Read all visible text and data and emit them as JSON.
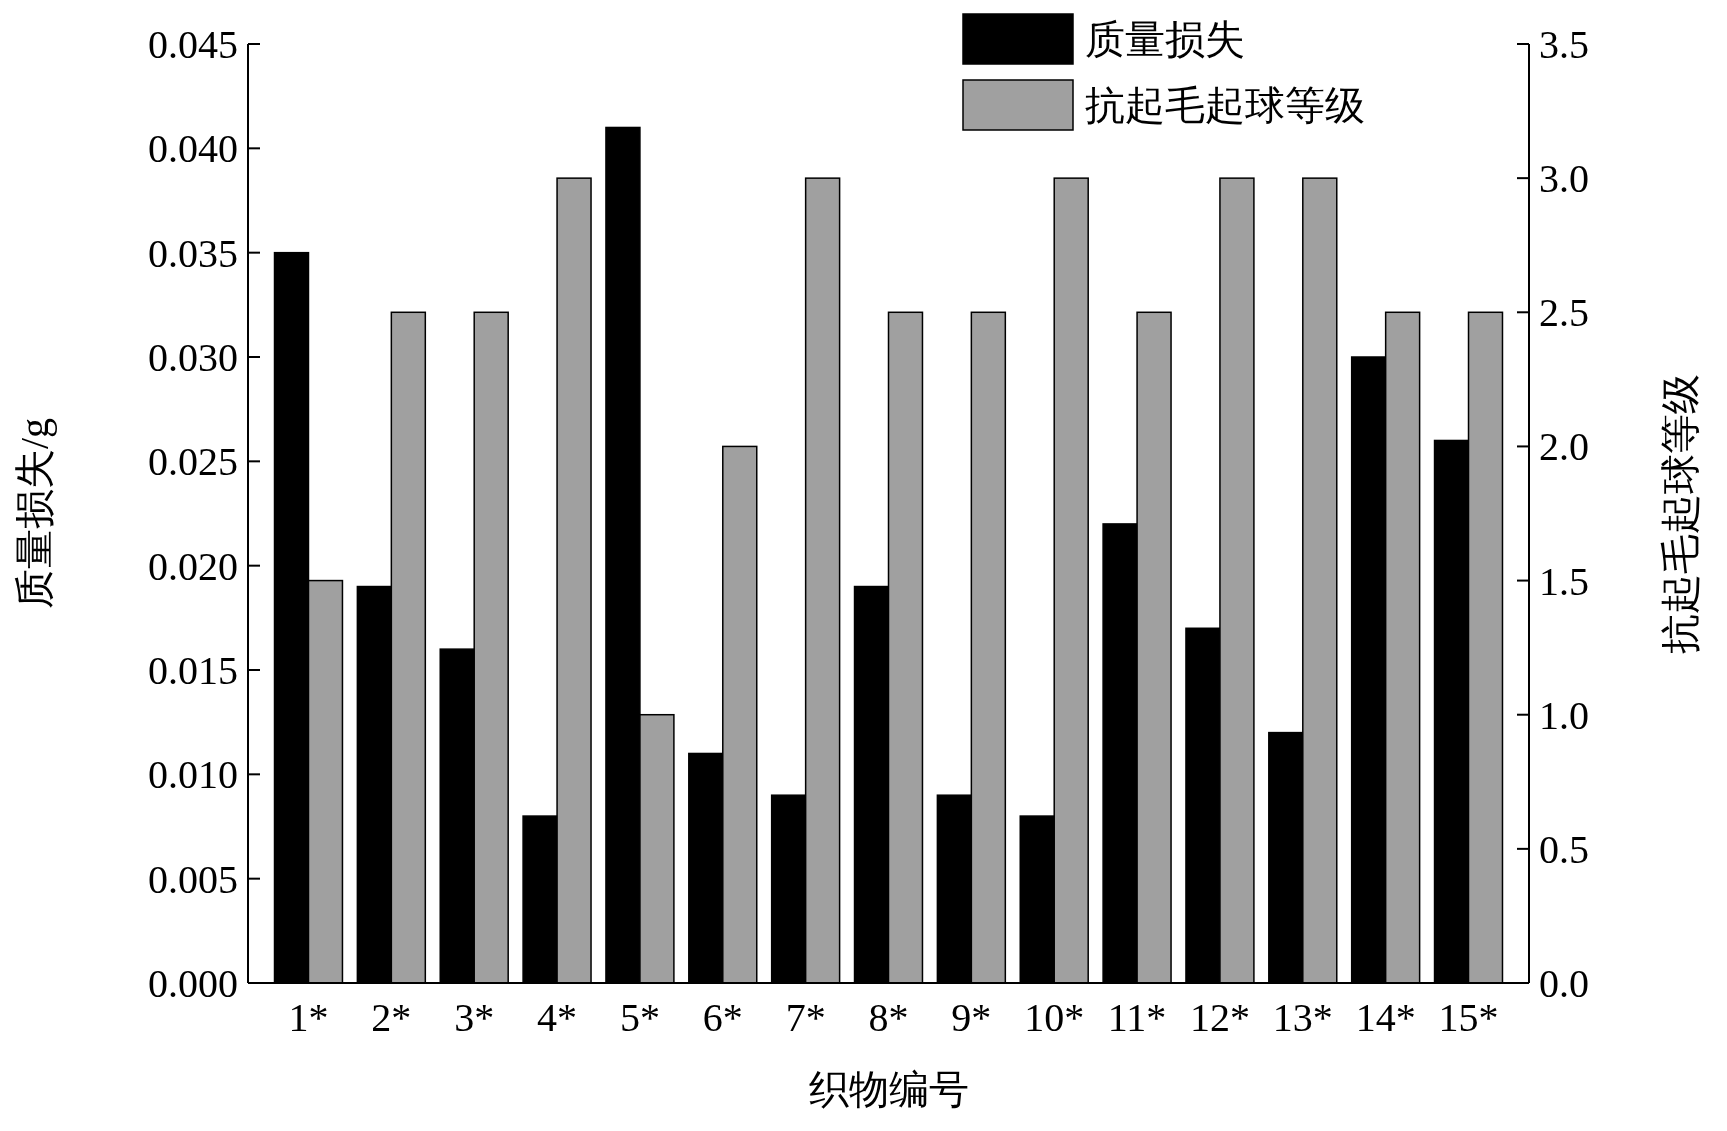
{
  "chart_data": {
    "type": "bar",
    "xlabel": "织物编号",
    "ylabel": "质量损失/g",
    "y2label": "抗起毛起球等级",
    "categories": [
      "1*",
      "2*",
      "3*",
      "4*",
      "5*",
      "6*",
      "7*",
      "8*",
      "9*",
      "10*",
      "11*",
      "12*",
      "13*",
      "14*",
      "15*"
    ],
    "series": [
      {
        "name": "质量损失",
        "color": "#000000",
        "values": [
          0.035,
          0.019,
          0.016,
          0.008,
          0.041,
          0.011,
          0.009,
          0.019,
          0.009,
          0.008,
          0.022,
          0.017,
          0.012,
          0.03,
          0.026
        ]
      },
      {
        "name": "抗起毛起球等级",
        "color": "#a0a0a0",
        "axis": "y2",
        "values": [
          1.5,
          2.5,
          2.5,
          3.0,
          1.0,
          2.0,
          3.0,
          2.5,
          2.5,
          3.0,
          2.5,
          3.0,
          3.0,
          2.5,
          2.5
        ]
      }
    ],
    "ylim": [
      0,
      0.045
    ],
    "yticks": [
      {
        "value": 0,
        "label": "0.000"
      },
      {
        "value": 0.005,
        "label": "0.005"
      },
      {
        "value": 0.01,
        "label": "0.010"
      },
      {
        "value": 0.015,
        "label": "0.015"
      },
      {
        "value": 0.02,
        "label": "0.020"
      },
      {
        "value": 0.025,
        "label": "0.025"
      },
      {
        "value": 0.03,
        "label": "0.030"
      },
      {
        "value": 0.035,
        "label": "0.035"
      },
      {
        "value": 0.04,
        "label": "0.040"
      },
      {
        "value": 0.045,
        "label": "0.045"
      }
    ],
    "y2lim": [
      0,
      3.5
    ],
    "y2ticks": [
      {
        "value": 0,
        "label": "0.0"
      },
      {
        "value": 0.5,
        "label": "0.5"
      },
      {
        "value": 1,
        "label": "1.0"
      },
      {
        "value": 1.5,
        "label": "1.5"
      },
      {
        "value": 2,
        "label": "2.0"
      },
      {
        "value": 2.5,
        "label": "2.5"
      },
      {
        "value": 3,
        "label": "3.0"
      },
      {
        "value": 3.5,
        "label": "3.5"
      }
    ],
    "legend": "top right",
    "grid": false
  }
}
